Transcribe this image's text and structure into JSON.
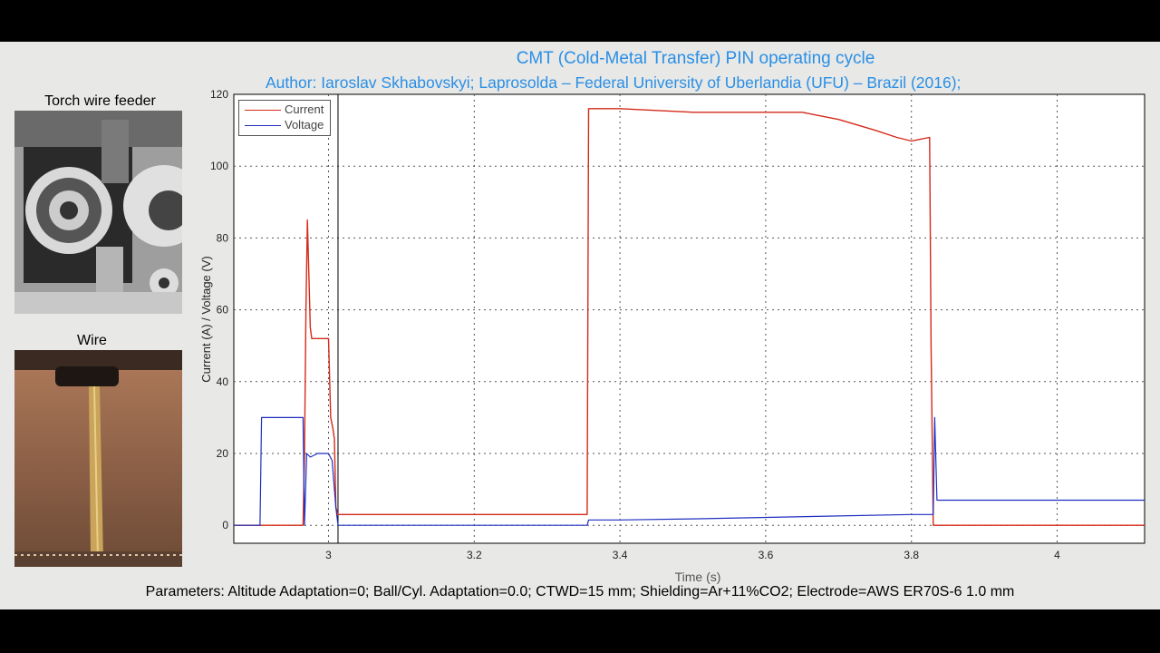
{
  "header": {
    "title": "CMT (Cold-Metal Transfer) PIN operating cycle",
    "author": "Author: Iaroslav Skhabovskyi;   Laprosolda – Federal University of Uberlandia (UFU) – Brazil (2016);"
  },
  "photos": {
    "top_label": "Torch wire feeder",
    "bottom_label": "Wire"
  },
  "footer": {
    "parameters": "Parameters: Altitude Adaptation=0; Ball/Cyl. Adaptation=0.0; CTWD=15 mm; Shielding=Ar+11%CO2; Electrode=AWS ER70S-6 1.0 mm"
  },
  "colors": {
    "current": "#d42a1a",
    "voltage": "#1f2fbf",
    "title": "#2a8fe6"
  },
  "chart_data": {
    "type": "line",
    "xlabel": "Time (s)",
    "ylabel": "Current (A) / Voltage (V)",
    "xlim": [
      2.87,
      4.12
    ],
    "ylim": [
      -5,
      120
    ],
    "xticks": [
      3,
      3.2,
      3.4,
      3.6,
      3.8,
      4
    ],
    "xtick_labels": [
      "3",
      "3.2",
      "3.4",
      "3.6",
      "3.8",
      "4"
    ],
    "yticks": [
      0,
      20,
      40,
      60,
      80,
      100,
      120
    ],
    "grid": true,
    "cursor_x": 3.013,
    "legend_position": "top-left",
    "series": [
      {
        "name": "Current",
        "x": [
          2.87,
          2.965,
          2.967,
          2.969,
          2.971,
          2.973,
          2.975,
          2.977,
          2.98,
          2.99,
          3.0,
          3.003,
          3.006,
          3.008,
          3.01,
          3.013,
          3.1,
          3.2,
          3.3,
          3.355,
          3.357,
          3.4,
          3.5,
          3.6,
          3.65,
          3.7,
          3.75,
          3.78,
          3.8,
          3.825,
          3.827,
          3.83,
          3.9,
          4.0,
          4.12
        ],
        "y": [
          0,
          0,
          20,
          60,
          85,
          70,
          55,
          52,
          52,
          52,
          52,
          30,
          27,
          24,
          5,
          3,
          3,
          3,
          3,
          3,
          116,
          116,
          115,
          115,
          115,
          113,
          110,
          108,
          107,
          108,
          50,
          0,
          0,
          0,
          0
        ]
      },
      {
        "name": "Voltage",
        "x": [
          2.87,
          2.906,
          2.908,
          2.935,
          2.965,
          2.967,
          2.97,
          2.975,
          2.985,
          3.0,
          3.005,
          3.01,
          3.013,
          3.1,
          3.2,
          3.3,
          3.355,
          3.357,
          3.4,
          3.5,
          3.6,
          3.7,
          3.8,
          3.83,
          3.832,
          3.835,
          3.9,
          4.0,
          4.12
        ],
        "y": [
          0,
          0,
          30,
          30,
          30,
          0,
          20,
          19,
          20,
          20,
          18,
          5,
          0,
          0,
          0,
          0,
          0,
          1.5,
          1.5,
          1.8,
          2.2,
          2.6,
          3.0,
          3.0,
          30,
          7,
          7,
          7,
          7
        ]
      }
    ]
  }
}
